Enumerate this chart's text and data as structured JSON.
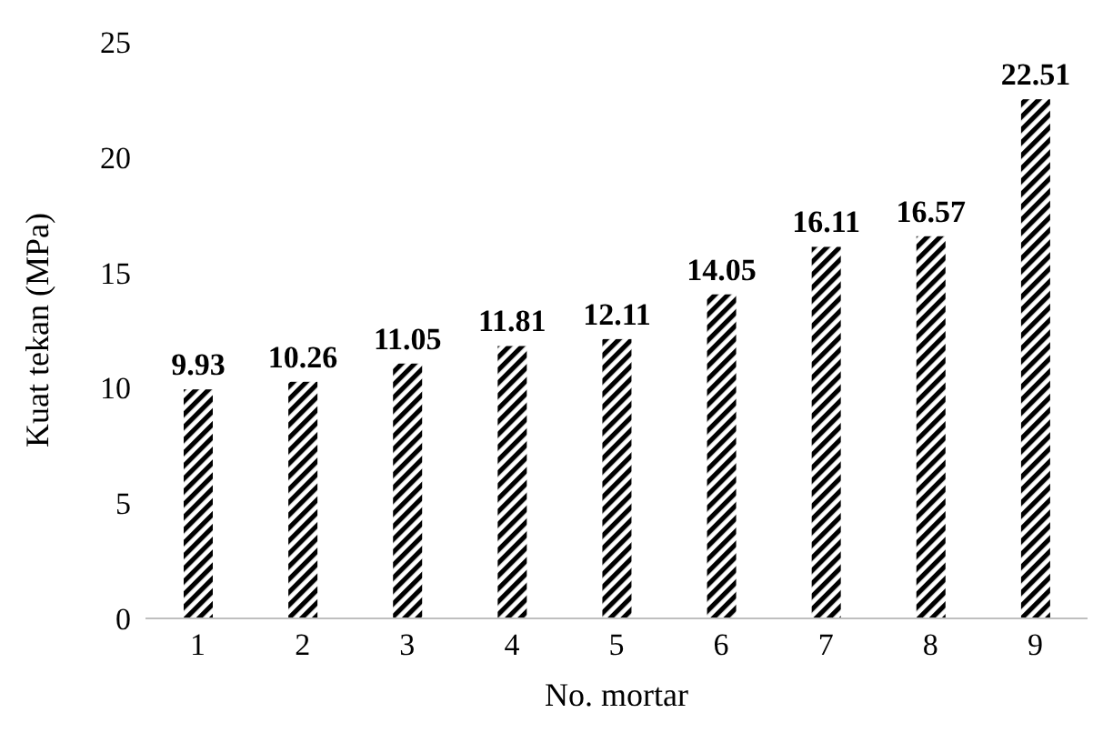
{
  "chart_data": {
    "type": "bar",
    "xlabel": "No. mortar",
    "ylabel": "Kuat tekan (MPa)",
    "categories": [
      "1",
      "2",
      "3",
      "4",
      "5",
      "6",
      "7",
      "8",
      "9"
    ],
    "values": [
      9.93,
      10.26,
      11.05,
      11.81,
      12.11,
      14.05,
      16.11,
      16.57,
      22.51
    ],
    "color": "#000000",
    "ylim": [
      0,
      25
    ],
    "yticks": [
      0,
      5,
      10,
      15,
      20,
      25
    ],
    "grid": false,
    "legend": false,
    "data_labels": true
  }
}
